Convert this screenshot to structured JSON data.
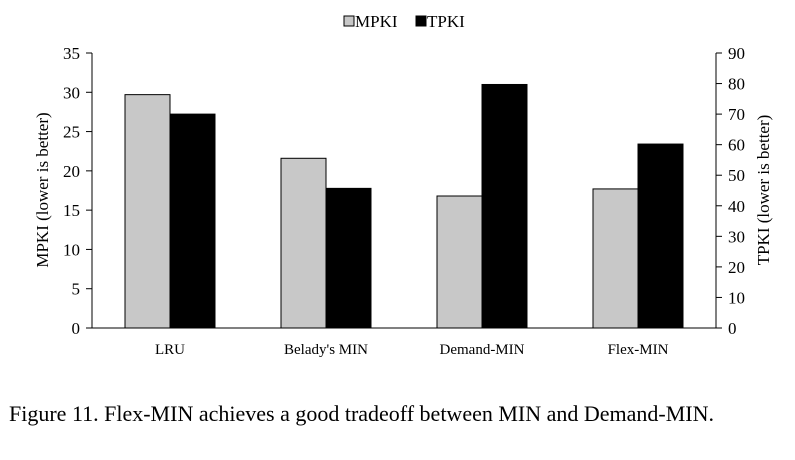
{
  "chart_data": {
    "type": "bar",
    "categories": [
      "LRU",
      "Belady's MIN",
      "Demand-MIN",
      "Flex-MIN"
    ],
    "series": [
      {
        "name": "MPKI",
        "axis": "left",
        "color": "#c8c8c8",
        "values": [
          29.7,
          21.6,
          16.8,
          17.7
        ]
      },
      {
        "name": "TPKI",
        "axis": "right",
        "color": "#000000",
        "values": [
          70.0,
          45.7,
          79.7,
          60.2
        ]
      }
    ],
    "y_left": {
      "label": "MPKI (lower is better)",
      "min": 0,
      "max": 35,
      "ticks": [
        0,
        5,
        10,
        15,
        20,
        25,
        30,
        35
      ]
    },
    "y_right": {
      "label": "TPKI (lower is better)",
      "min": 0,
      "max": 90,
      "ticks": [
        0,
        10,
        20,
        30,
        40,
        50,
        60,
        70,
        80,
        90
      ]
    },
    "legend_position": "top-center",
    "grid": false
  },
  "caption": "Figure 11.   Flex-MIN achieves a good tradeoff between MIN and Demand-MIN."
}
